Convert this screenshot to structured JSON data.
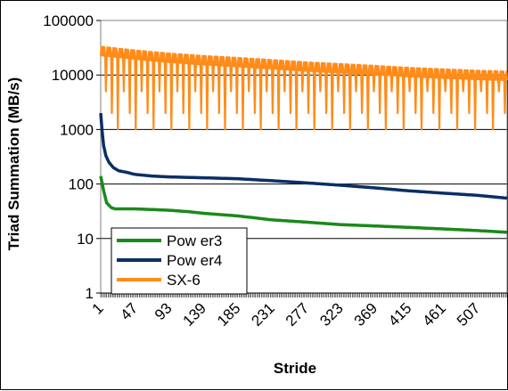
{
  "chart_data": {
    "type": "line",
    "xlabel": "Stride",
    "ylabel": "Triad Summation (MB/s)",
    "y_scale": "log",
    "ylim": [
      1,
      100000
    ],
    "xlim": [
      1,
      547
    ],
    "x_tick_labels": [
      "1",
      "47",
      "93",
      "139",
      "185",
      "231",
      "277",
      "323",
      "369",
      "415",
      "461",
      "507"
    ],
    "y_tick_labels": [
      "1",
      "10",
      "100",
      "1000",
      "10000",
      "100000"
    ],
    "grid": "horizontal major",
    "legend_position": "lower-left",
    "series": [
      {
        "name": "Pow er3",
        "color": "#1a8a1a",
        "x": [
          1,
          5,
          9,
          15,
          20,
          30,
          47,
          70,
          93,
          120,
          139,
          185,
          231,
          277,
          323,
          369,
          415,
          461,
          507,
          547
        ],
        "y": [
          140,
          75,
          45,
          37,
          35,
          35,
          35,
          34,
          33,
          31,
          29,
          26,
          22,
          20,
          18,
          17,
          16,
          15,
          14,
          13
        ]
      },
      {
        "name": "Pow er4",
        "color": "#0a2f66",
        "x": [
          1,
          3,
          5,
          8,
          12,
          18,
          25,
          35,
          47,
          70,
          93,
          139,
          185,
          231,
          277,
          323,
          369,
          415,
          461,
          507,
          547
        ],
        "y": [
          2000,
          900,
          500,
          330,
          250,
          200,
          175,
          165,
          150,
          140,
          135,
          130,
          125,
          115,
          105,
          95,
          85,
          75,
          68,
          62,
          55
        ]
      },
      {
        "name": "SX-6",
        "color": "#ff8c1a",
        "x": [
          1,
          47,
          93,
          139,
          185,
          231,
          277,
          323,
          369,
          415,
          461,
          507,
          547
        ],
        "y": [
          28000,
          24000,
          21000,
          19000,
          17500,
          16000,
          14500,
          13500,
          12500,
          11500,
          10800,
          10200,
          9800
        ],
        "dips_to": 1000,
        "dip_every": 8
      }
    ]
  }
}
